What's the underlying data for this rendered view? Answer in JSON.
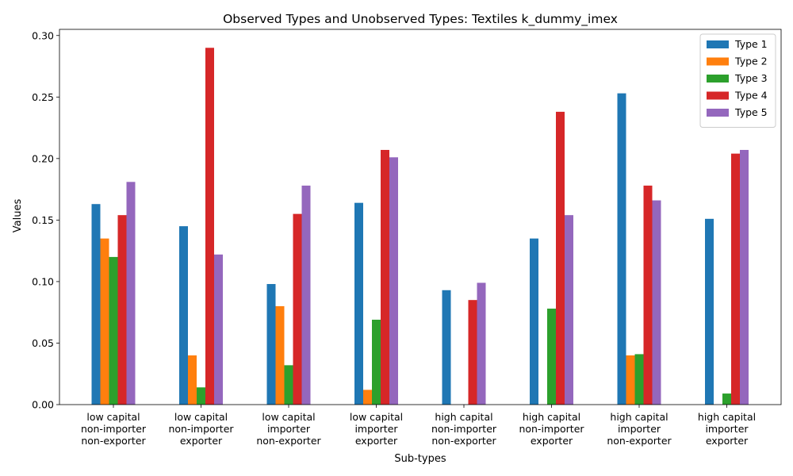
{
  "chart_data": {
    "type": "bar",
    "title": "Observed Types and Unobserved Types: Textiles k_dummy_imex",
    "xlabel": "Sub-types",
    "ylabel": "Values",
    "ylim": [
      0,
      0.305
    ],
    "yticks": [
      "0.00",
      "0.05",
      "0.10",
      "0.15",
      "0.20",
      "0.25",
      "0.30"
    ],
    "ytick_values": [
      0,
      0.05,
      0.1,
      0.15,
      0.2,
      0.25,
      0.3
    ],
    "legend_position": "top-right",
    "grid": false,
    "categories": [
      [
        "low capital",
        "non-importer",
        "non-exporter"
      ],
      [
        "low capital",
        "non-importer",
        "exporter"
      ],
      [
        "low capital",
        "importer",
        "non-exporter"
      ],
      [
        "low capital",
        "importer",
        "exporter"
      ],
      [
        "high capital",
        "non-importer",
        "non-exporter"
      ],
      [
        "high capital",
        "non-importer",
        "exporter"
      ],
      [
        "high capital",
        "importer",
        "non-exporter"
      ],
      [
        "high capital",
        "importer",
        "exporter"
      ]
    ],
    "series": [
      {
        "name": "Type 1",
        "color": "#1f77b4",
        "values": [
          0.163,
          0.145,
          0.098,
          0.164,
          0.093,
          0.135,
          0.253,
          0.151
        ]
      },
      {
        "name": "Type 2",
        "color": "#ff7f0e",
        "values": [
          0.135,
          0.04,
          0.08,
          0.012,
          0.0,
          0.0,
          0.04,
          0.0
        ]
      },
      {
        "name": "Type 3",
        "color": "#2ca02c",
        "values": [
          0.12,
          0.014,
          0.032,
          0.069,
          0.0,
          0.078,
          0.041,
          0.009
        ]
      },
      {
        "name": "Type 4",
        "color": "#d62728",
        "values": [
          0.154,
          0.29,
          0.155,
          0.207,
          0.085,
          0.238,
          0.178,
          0.204
        ]
      },
      {
        "name": "Type 5",
        "color": "#9467bd",
        "values": [
          0.181,
          0.122,
          0.178,
          0.201,
          0.099,
          0.154,
          0.166,
          0.207
        ]
      }
    ]
  }
}
